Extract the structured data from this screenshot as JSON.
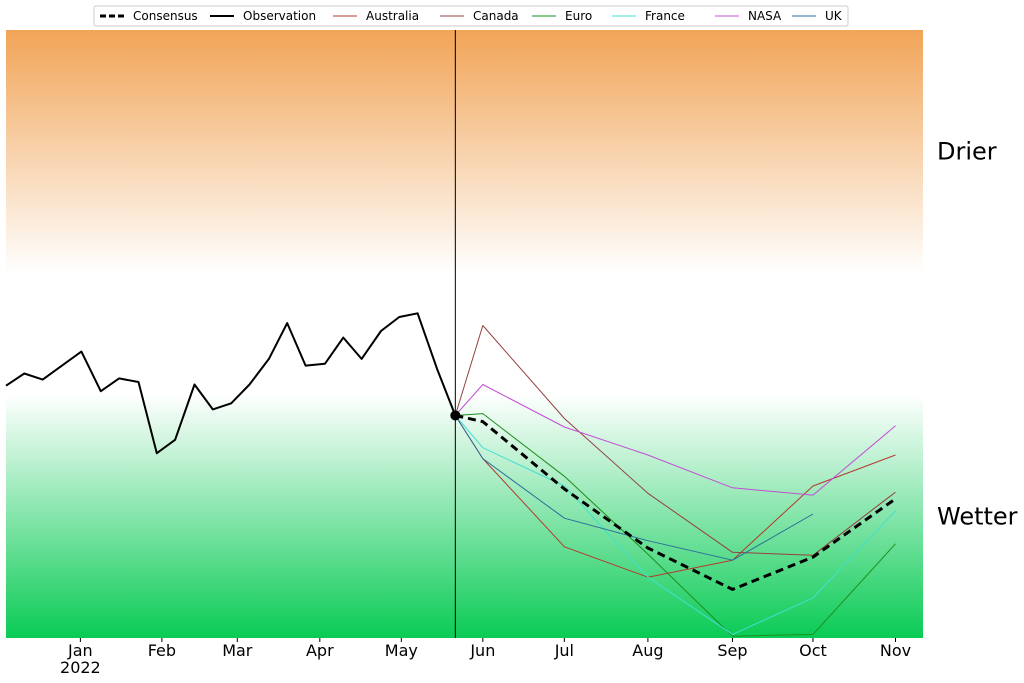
{
  "chart_data": {
    "type": "line",
    "title": "",
    "xlabel": "",
    "ylabel": "",
    "x_ticks": [
      {
        "label": "Jan",
        "sublabel": "2022",
        "x": 1.4
      },
      {
        "label": "Feb",
        "x": 2.2
      },
      {
        "label": "Mar",
        "x": 2.94
      },
      {
        "label": "Apr",
        "x": 3.75
      },
      {
        "label": "May",
        "x": 4.55
      },
      {
        "label": "Jun",
        "x": 5.35
      },
      {
        "label": "Jul",
        "x": 6.15
      },
      {
        "label": "Aug",
        "x": 6.97
      },
      {
        "label": "Sep",
        "x": 7.8
      },
      {
        "label": "Oct",
        "x": 8.59
      },
      {
        "label": "Nov",
        "x": 9.4
      }
    ],
    "xlim": [
      0.67,
      9.67
    ],
    "ylim": [
      0,
      100
    ],
    "forecast_start_x": 5.08,
    "regions": [
      {
        "label": "Drier",
        "from": 60,
        "to": 100,
        "color_strong": "#f1a457",
        "color_light": "#ffffff",
        "direction": "up"
      },
      {
        "label": "Wetter",
        "from": 0,
        "to": 40,
        "color_strong": "#0acb55",
        "color_light": "#ffffff",
        "direction": "down"
      }
    ],
    "legend": {
      "placement": "top"
    },
    "series": [
      {
        "name": "Observation",
        "color": "#000000",
        "style": "solid",
        "width": 2,
        "x": [
          0.67,
          0.85,
          1.03,
          1.22,
          1.41,
          1.6,
          1.78,
          1.97,
          2.15,
          2.33,
          2.52,
          2.7,
          2.88,
          3.06,
          3.25,
          3.43,
          3.61,
          3.8,
          3.98,
          4.16,
          4.35,
          4.53,
          4.71,
          4.9,
          5.08
        ],
        "y": [
          41.5,
          43.5,
          42.5,
          44.8,
          47.1,
          40.6,
          42.7,
          42.1,
          30.4,
          32.6,
          41.7,
          37.6,
          38.6,
          41.7,
          45.9,
          51.8,
          44.8,
          45.1,
          49.4,
          45.9,
          50.5,
          52.8,
          53.4,
          44.3,
          36.6
        ]
      },
      {
        "name": "Consensus",
        "color": "#000000",
        "style": "dashed",
        "width": 3,
        "x": [
          5.08,
          5.35,
          6.15,
          6.97,
          7.8,
          8.59,
          9.4
        ],
        "y": [
          36.6,
          35.6,
          24.5,
          14.8,
          8.0,
          13.3,
          22.9
        ]
      },
      {
        "name": "Australia",
        "color": "#b33a2e",
        "style": "solid",
        "width": 1,
        "x": [
          5.08,
          5.35,
          6.15,
          6.97,
          7.8,
          8.59,
          9.4
        ],
        "y": [
          36.6,
          29.5,
          15.0,
          10.0,
          12.8,
          25.0,
          30.1
        ]
      },
      {
        "name": "Canada",
        "color": "#944040",
        "style": "solid",
        "width": 1,
        "x": [
          5.08,
          5.35,
          6.15,
          6.97,
          7.8,
          8.59,
          9.4
        ],
        "y": [
          36.6,
          51.4,
          36.1,
          23.8,
          14.1,
          13.6,
          24.0
        ]
      },
      {
        "name": "Euro",
        "color": "#1e8f1e",
        "style": "solid",
        "width": 1,
        "x": [
          5.08,
          5.35,
          6.15,
          6.97,
          7.8,
          8.59,
          9.4
        ],
        "y": [
          36.6,
          36.9,
          26.6,
          13.8,
          0.3,
          0.6,
          15.5
        ]
      },
      {
        "name": "France",
        "color": "#40e0d0",
        "style": "solid",
        "width": 1,
        "x": [
          5.08,
          5.35,
          6.15,
          6.97,
          7.8,
          8.59,
          9.4
        ],
        "y": [
          36.6,
          31.3,
          25.0,
          10.0,
          0.6,
          6.6,
          20.9
        ]
      },
      {
        "name": "NASA",
        "color": "#c44dd6",
        "style": "solid",
        "width": 1,
        "x": [
          5.08,
          5.35,
          6.15,
          6.97,
          7.8,
          8.59,
          9.4
        ],
        "y": [
          36.6,
          41.7,
          34.7,
          30.1,
          24.7,
          23.5,
          34.9
        ]
      },
      {
        "name": "UK",
        "color": "#2b6e9c",
        "style": "solid",
        "width": 1,
        "x": [
          5.08,
          5.35,
          6.15,
          6.97,
          7.8,
          8.59
        ],
        "y": [
          36.6,
          29.5,
          19.7,
          16.0,
          12.8,
          20.4
        ]
      }
    ],
    "legend_order": [
      "Consensus",
      "Observation",
      "Australia",
      "Canada",
      "Euro",
      "France",
      "NASA",
      "UK"
    ]
  }
}
